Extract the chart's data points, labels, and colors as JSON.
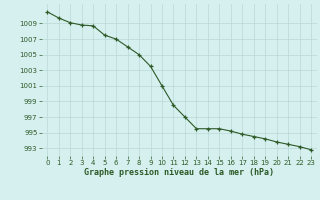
{
  "x": [
    0,
    1,
    2,
    3,
    4,
    5,
    6,
    7,
    8,
    9,
    10,
    11,
    12,
    13,
    14,
    15,
    16,
    17,
    18,
    19,
    20,
    21,
    22,
    23
  ],
  "y": [
    1010.5,
    1009.7,
    1009.1,
    1008.8,
    1008.7,
    1007.5,
    1007.0,
    1006.0,
    1005.0,
    1003.5,
    1001.0,
    998.5,
    997.0,
    995.5,
    995.5,
    995.5,
    995.2,
    994.8,
    994.5,
    994.2,
    993.8,
    993.5,
    993.2,
    992.8
  ],
  "line_color": "#2d5a27",
  "marker": "+",
  "bg_color": "#d6f0ef",
  "grid_color": "#b8d8d6",
  "xlabel": "Graphe pression niveau de la mer (hPa)",
  "xlabel_color": "#2d5a27",
  "tick_color": "#2d5a27",
  "yticks": [
    993,
    995,
    997,
    999,
    1001,
    1003,
    1005,
    1007,
    1009
  ],
  "xticks": [
    0,
    1,
    2,
    3,
    4,
    5,
    6,
    7,
    8,
    9,
    10,
    11,
    12,
    13,
    14,
    15,
    16,
    17,
    18,
    19,
    20,
    21,
    22,
    23
  ],
  "ylim": [
    992.0,
    1011.5
  ],
  "xlim": [
    -0.5,
    23.5
  ]
}
